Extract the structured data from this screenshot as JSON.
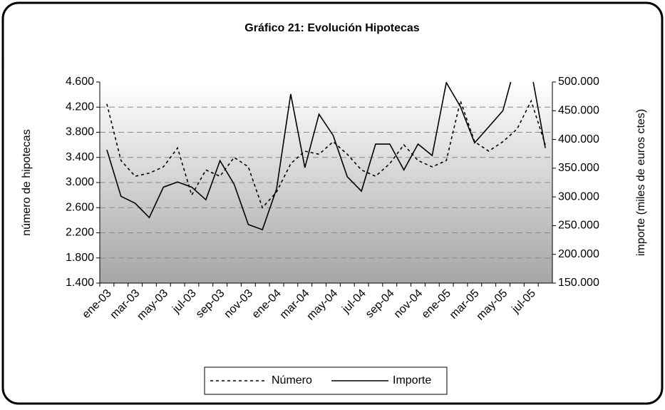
{
  "chart_data": {
    "type": "line",
    "title": "Gráfico 21: Evolución Hipotecas",
    "ylabel": "número de hipotecas",
    "y2label": "importe (miles de euros ctes)",
    "categories": [
      "ene-03",
      null,
      "mar-03",
      null,
      "may-03",
      null,
      "jul-03",
      null,
      "sep-03",
      null,
      "nov-03",
      null,
      "ene-04",
      null,
      "mar-04",
      null,
      "may-04",
      null,
      "jul-04",
      null,
      "sep-04",
      null,
      "nov-04",
      null,
      "ene-05",
      null,
      "mar-05",
      null,
      "may-05",
      null,
      "jul-05",
      null
    ],
    "series": [
      {
        "name": "Número",
        "color": "#000000",
        "style": "dotted",
        "values": [
          4250,
          3350,
          3100,
          3150,
          3250,
          3550,
          2800,
          3200,
          3100,
          3400,
          3250,
          2600,
          2850,
          3300,
          3500,
          3450,
          3650,
          3450,
          3200,
          3100,
          3300,
          3600,
          3350,
          3250,
          3350,
          4300,
          3650,
          3500,
          3650,
          3850,
          4300,
          3600
        ]
      },
      {
        "name": "Importe",
        "color": "#000000",
        "style": "solid",
        "axis": "y2",
        "values": [
          382000,
          301000,
          289000,
          264000,
          317000,
          326000,
          317000,
          295000,
          363000,
          322000,
          252000,
          243000,
          314000,
          479000,
          351000,
          444000,
          407000,
          335000,
          310000,
          392000,
          392000,
          347000,
          392000,
          372000,
          499000,
          457000,
          394000,
          422000,
          450000,
          540000,
          520000,
          385000
        ]
      }
    ],
    "ylim": [
      1400,
      4600
    ],
    "yticks": [
      {
        "value": 1400,
        "label": "1.400"
      },
      {
        "value": 1800,
        "label": "1.800"
      },
      {
        "value": 2200,
        "label": "2.200"
      },
      {
        "value": 2600,
        "label": "2.600"
      },
      {
        "value": 3000,
        "label": "3.000"
      },
      {
        "value": 3400,
        "label": "3.400"
      },
      {
        "value": 3800,
        "label": "3.800"
      },
      {
        "value": 4200,
        "label": "4.200"
      },
      {
        "value": 4600,
        "label": "4.600"
      }
    ],
    "y2lim": [
      150000,
      500000
    ],
    "y2ticks": [
      {
        "value": 150000,
        "label": "150.000"
      },
      {
        "value": 200000,
        "label": "200.000"
      },
      {
        "value": 250000,
        "label": "250.000"
      },
      {
        "value": 300000,
        "label": "300.000"
      },
      {
        "value": 350000,
        "label": "350.000"
      },
      {
        "value": 400000,
        "label": "400.000"
      },
      {
        "value": 450000,
        "label": "450.000"
      },
      {
        "value": 500000,
        "label": "500.000"
      }
    ],
    "grid": true,
    "legend": "bottom"
  }
}
